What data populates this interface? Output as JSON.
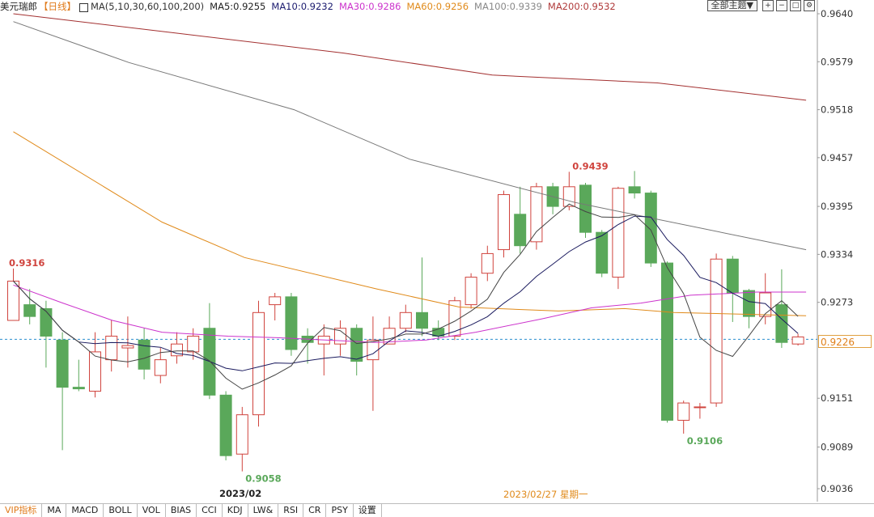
{
  "header": {
    "symbol": "美元瑞郎",
    "timeframe": "【日线】",
    "ma_params": "MA(5,10,30,60,100,200)",
    "ma5": "MA5:0.9255",
    "ma10": "MA10:0.9232",
    "ma30": "MA30:0.9286",
    "ma60": "MA60:0.9256",
    "ma100": "MA100:0.9339",
    "ma200": "MA200:0.9532"
  },
  "toolbar": {
    "theme_label": "全部主题▼"
  },
  "colors": {
    "up": "#d0443e",
    "down": "#5aa85a",
    "ma5": "#444444",
    "ma10": "#1a1a5e",
    "ma30": "#cc33cc",
    "ma60": "#e08a1a",
    "ma100": "#777777",
    "ma200": "#a33030"
  },
  "price_box": "0.9226",
  "bottom_dates": {
    "left": "2023/02",
    "center": "2023/02/27 星期一"
  },
  "tabs": [
    "VIP指标",
    "MA",
    "MACD",
    "BOLL",
    "VOL",
    "BIAS",
    "CCI",
    "KDJ",
    "LW&",
    "RSI",
    "CR",
    "PSY",
    "设置"
  ],
  "chart_data": {
    "type": "candlestick",
    "ylim": [
      0.9036,
      0.964
    ],
    "yticks": [
      0.964,
      0.9579,
      0.9518,
      0.9457,
      0.9395,
      0.9334,
      0.9273,
      0.9151,
      0.9089,
      0.9036
    ],
    "annotations": [
      {
        "label": "0.9316",
        "index": 0
      },
      {
        "label": "0.9058",
        "index": 14
      },
      {
        "label": "0.9439",
        "index": 34
      },
      {
        "label": "0.9106",
        "index": 41
      }
    ],
    "candles": [
      [
        0.925,
        0.93,
        0.9316,
        0.925
      ],
      [
        0.927,
        0.9255,
        0.929,
        0.9245
      ],
      [
        0.9265,
        0.923,
        0.9275,
        0.919
      ],
      [
        0.9225,
        0.9165,
        0.9235,
        0.9085
      ],
      [
        0.9165,
        0.9163,
        0.92,
        0.916
      ],
      [
        0.916,
        0.921,
        0.9235,
        0.9152
      ],
      [
        0.92,
        0.923,
        0.925,
        0.9185
      ],
      [
        0.9215,
        0.9218,
        0.9255,
        0.919
      ],
      [
        0.9225,
        0.9188,
        0.924,
        0.9175
      ],
      [
        0.918,
        0.92,
        0.9215,
        0.917
      ],
      [
        0.9205,
        0.922,
        0.9235,
        0.9195
      ],
      [
        0.921,
        0.923,
        0.924,
        0.92
      ],
      [
        0.924,
        0.9155,
        0.9272,
        0.915
      ],
      [
        0.9155,
        0.9078,
        0.916,
        0.9072
      ],
      [
        0.908,
        0.913,
        0.914,
        0.9058
      ],
      [
        0.913,
        0.926,
        0.9275,
        0.9115
      ],
      [
        0.927,
        0.928,
        0.9285,
        0.925
      ],
      [
        0.928,
        0.9213,
        0.9285,
        0.9205
      ],
      [
        0.923,
        0.9222,
        0.924,
        0.9195
      ],
      [
        0.922,
        0.923,
        0.9245,
        0.918
      ],
      [
        0.922,
        0.924,
        0.925,
        0.9205
      ],
      [
        0.924,
        0.9198,
        0.9245,
        0.918
      ],
      [
        0.92,
        0.9225,
        0.9255,
        0.9135
      ],
      [
        0.922,
        0.924,
        0.9255,
        0.9225
      ],
      [
        0.924,
        0.926,
        0.927,
        0.9235
      ],
      [
        0.926,
        0.924,
        0.933,
        0.923
      ],
      [
        0.924,
        0.923,
        0.925,
        0.9225
      ],
      [
        0.923,
        0.9275,
        0.928,
        0.9225
      ],
      [
        0.927,
        0.9305,
        0.931,
        0.9265
      ],
      [
        0.931,
        0.9335,
        0.9345,
        0.93
      ],
      [
        0.934,
        0.941,
        0.9415,
        0.933
      ],
      [
        0.9385,
        0.9345,
        0.942,
        0.9335
      ],
      [
        0.935,
        0.942,
        0.9425,
        0.934
      ],
      [
        0.942,
        0.9395,
        0.9425,
        0.9385
      ],
      [
        0.9395,
        0.942,
        0.9439,
        0.939
      ],
      [
        0.9422,
        0.9362,
        0.9425,
        0.9355
      ],
      [
        0.9362,
        0.931,
        0.9365,
        0.9305
      ],
      [
        0.9305,
        0.9418,
        0.942,
        0.929
      ],
      [
        0.942,
        0.9412,
        0.944,
        0.9405
      ],
      [
        0.9412,
        0.9323,
        0.9415,
        0.9318
      ],
      [
        0.9323,
        0.9123,
        0.9325,
        0.912
      ],
      [
        0.9123,
        0.9145,
        0.9148,
        0.9106
      ],
      [
        0.914,
        0.914,
        0.9145,
        0.9125
      ],
      [
        0.9145,
        0.9328,
        0.9335,
        0.914
      ],
      [
        0.9328,
        0.9285,
        0.9332,
        0.9248
      ],
      [
        0.9288,
        0.9255,
        0.929,
        0.924
      ],
      [
        0.9255,
        0.9285,
        0.931,
        0.9245
      ],
      [
        0.927,
        0.9222,
        0.9315,
        0.9215
      ],
      [
        0.922,
        0.9229,
        0.9233,
        0.9218
      ]
    ],
    "ma_lines": {
      "ma200": [
        [
          0,
          0.964
        ],
        [
          20,
          0.9615
        ],
        [
          40,
          0.959
        ],
        [
          58,
          0.9562
        ],
        [
          78,
          0.9552
        ],
        [
          96,
          0.953
        ]
      ],
      "ma100": [
        [
          0,
          0.963
        ],
        [
          14,
          0.9578
        ],
        [
          34,
          0.9518
        ],
        [
          48,
          0.9455
        ],
        [
          68,
          0.94
        ],
        [
          96,
          0.934
        ]
      ],
      "ma60": [
        [
          0,
          0.949
        ],
        [
          18,
          0.9375
        ],
        [
          28,
          0.933
        ],
        [
          44,
          0.929
        ],
        [
          54,
          0.9267
        ],
        [
          66,
          0.9262
        ],
        [
          74,
          0.9265
        ],
        [
          80,
          0.926
        ],
        [
          96,
          0.9256
        ]
      ],
      "ma30": [
        [
          0,
          0.9295
        ],
        [
          6,
          0.9272
        ],
        [
          12,
          0.925
        ],
        [
          18,
          0.9235
        ],
        [
          26,
          0.923
        ],
        [
          32,
          0.9228
        ],
        [
          44,
          0.9222
        ],
        [
          50,
          0.9225
        ],
        [
          56,
          0.9235
        ],
        [
          64,
          0.9252
        ],
        [
          70,
          0.9266
        ],
        [
          76,
          0.9272
        ],
        [
          82,
          0.9282
        ],
        [
          90,
          0.9286
        ],
        [
          96,
          0.9286
        ]
      ]
    }
  }
}
